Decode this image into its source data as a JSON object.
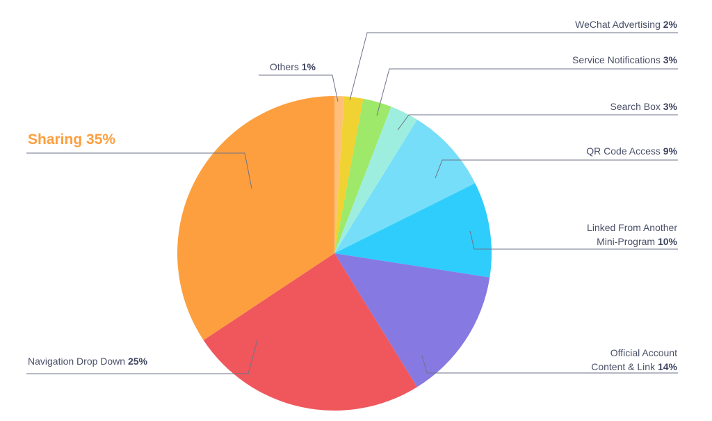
{
  "chart_data": {
    "type": "pie",
    "title": "",
    "slices": [
      {
        "name": "Others",
        "label": "Others",
        "value_label": "1%",
        "value": 1,
        "color": "#ffbf7a"
      },
      {
        "name": "WeChat Advertising",
        "label": "WeChat Advertising",
        "value_label": "2%",
        "value": 2,
        "color": "#f1d233"
      },
      {
        "name": "Service Notifications",
        "label": "Service Notifications",
        "value_label": "3%",
        "value": 3,
        "color": "#9ee86a"
      },
      {
        "name": "Search Box",
        "label": "Search Box",
        "value_label": "3%",
        "value": 3,
        "color": "#9eeee0"
      },
      {
        "name": "QR Code Access",
        "label": "QR Code Access",
        "value_label": "9%",
        "value": 9,
        "color": "#76def9"
      },
      {
        "name": "Linked From Another Mini-Program",
        "label_lines": [
          "Linked From Another",
          "Mini-Program"
        ],
        "value_label": "10%",
        "value": 10,
        "color": "#2ecdfb"
      },
      {
        "name": "Official Account Content & Link",
        "label_lines": [
          "Official Account",
          "Content & Link"
        ],
        "value_label": "14%",
        "value": 14,
        "color": "#867ae2"
      },
      {
        "name": "Navigation Drop Down",
        "label": "Navigation Drop Down",
        "value_label": "25%",
        "value": 25,
        "color": "#ef575d"
      },
      {
        "name": "Sharing",
        "label": "Sharing",
        "value_label": "35%",
        "value": 35,
        "color": "#fd9f3f",
        "highlight": true
      }
    ],
    "start_angle_deg": 0,
    "direction": "clockwise",
    "highlight_label_color": "#fd9f3f",
    "label_text_color": "#4a5068",
    "leader_line_color": "#6e7387"
  }
}
